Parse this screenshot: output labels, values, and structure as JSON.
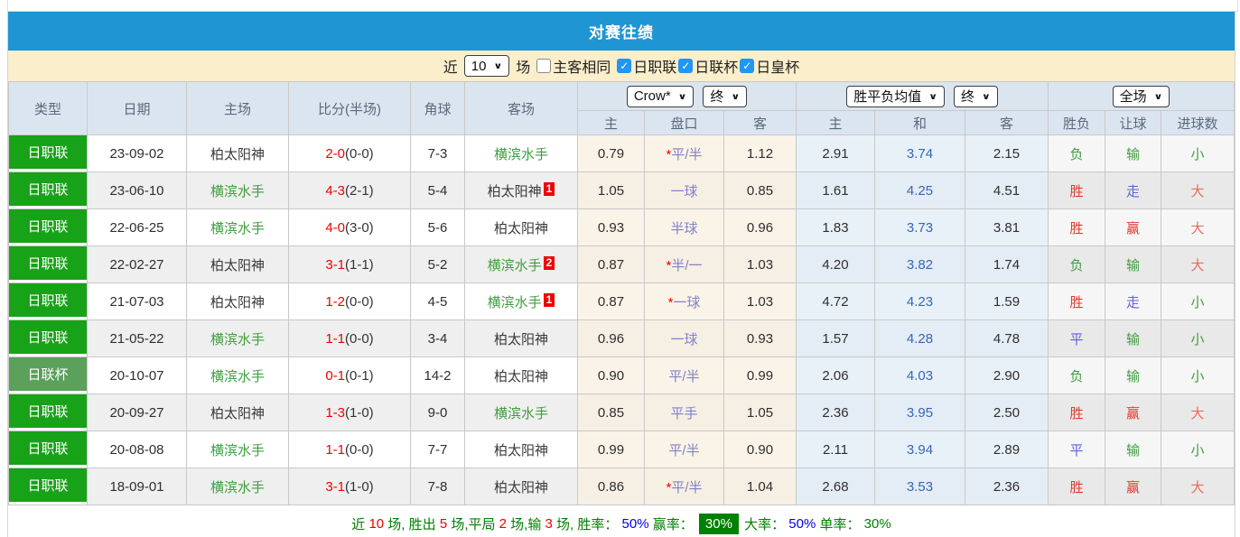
{
  "title": "对赛往绩",
  "colors": {
    "title_bar": "#2095d3",
    "filter_bar": "#fbeecb",
    "league_badge": "#18a218",
    "cup_badge": "#5ba05b",
    "summary_highlight": "#008000",
    "checkbox_checked": "#2196f3"
  },
  "filter": {
    "recent_label": "近",
    "match_count": "10",
    "games_label": "场",
    "same_home_away": "主客相同",
    "same_home_away_checked": false,
    "competitions": [
      {
        "label": "日职联",
        "checked": true
      },
      {
        "label": "日联杯",
        "checked": true
      },
      {
        "label": "日皇杯",
        "checked": true
      }
    ]
  },
  "table": {
    "main_headers": [
      "类型",
      "日期",
      "主场",
      "比分(半场)",
      "角球",
      "客场"
    ],
    "selects": {
      "odds_source": "Crow*",
      "odds_time": "终",
      "avg_source": "胜平负均值",
      "avg_time": "终",
      "scope": "全场"
    },
    "odds_sub_headers": [
      "主",
      "盘口",
      "客"
    ],
    "avg_sub_headers": [
      "主",
      "和",
      "客"
    ],
    "result_sub_headers": [
      "胜负",
      "让球",
      "进球数"
    ],
    "rows": [
      {
        "league": "日职联",
        "league_type": "jleague",
        "date": "23-09-02",
        "home": "柏太阳神",
        "home_color": "dark",
        "score": "2-0",
        "half": "(0-0)",
        "corner": "7-3",
        "away": "横滨水手",
        "away_color": "green",
        "away_num": "",
        "odds_home": "0.79",
        "handicap": "*平/半",
        "odds_away": "1.12",
        "avg_home": "2.91",
        "avg_draw": "3.74",
        "avg_away": "2.15",
        "result": "负",
        "result_color": "green",
        "let_result": "输",
        "let_color": "green",
        "goals": "小",
        "goals_color": "green"
      },
      {
        "league": "日职联",
        "league_type": "jleague",
        "date": "23-06-10",
        "home": "横滨水手",
        "home_color": "green",
        "score": "4-3",
        "half": "(2-1)",
        "corner": "5-4",
        "away": "柏太阳神",
        "away_color": "dark",
        "away_num": "1",
        "odds_home": "1.05",
        "handicap": "一球",
        "odds_away": "0.85",
        "avg_home": "1.61",
        "avg_draw": "4.25",
        "avg_away": "4.51",
        "result": "胜",
        "result_color": "red",
        "let_result": "走",
        "let_color": "blue",
        "goals": "大",
        "goals_color": "red"
      },
      {
        "league": "日职联",
        "league_type": "jleague",
        "date": "22-06-25",
        "home": "横滨水手",
        "home_color": "green",
        "score": "4-0",
        "half": "(3-0)",
        "corner": "5-6",
        "away": "柏太阳神",
        "away_color": "dark",
        "away_num": "",
        "odds_home": "0.93",
        "handicap": "半球",
        "odds_away": "0.96",
        "avg_home": "1.83",
        "avg_draw": "3.73",
        "avg_away": "3.81",
        "result": "胜",
        "result_color": "red",
        "let_result": "赢",
        "let_color": "red",
        "goals": "大",
        "goals_color": "red"
      },
      {
        "league": "日职联",
        "league_type": "jleague",
        "date": "22-02-27",
        "home": "柏太阳神",
        "home_color": "dark",
        "score": "3-1",
        "half": "(1-1)",
        "corner": "5-2",
        "away": "横滨水手",
        "away_color": "green",
        "away_num": "2",
        "odds_home": "0.87",
        "handicap": "*半/一",
        "odds_away": "1.03",
        "avg_home": "4.20",
        "avg_draw": "3.82",
        "avg_away": "1.74",
        "result": "负",
        "result_color": "green",
        "let_result": "输",
        "let_color": "green",
        "goals": "大",
        "goals_color": "red"
      },
      {
        "league": "日职联",
        "league_type": "jleague",
        "date": "21-07-03",
        "home": "柏太阳神",
        "home_color": "dark",
        "score": "1-2",
        "half": "(0-0)",
        "corner": "4-5",
        "away": "横滨水手",
        "away_color": "green",
        "away_num": "1",
        "odds_home": "0.87",
        "handicap": "*一球",
        "odds_away": "1.03",
        "avg_home": "4.72",
        "avg_draw": "4.23",
        "avg_away": "1.59",
        "result": "胜",
        "result_color": "red",
        "let_result": "走",
        "let_color": "blue",
        "goals": "小",
        "goals_color": "green"
      },
      {
        "league": "日职联",
        "league_type": "jleague",
        "date": "21-05-22",
        "home": "横滨水手",
        "home_color": "green",
        "score": "1-1",
        "half": "(0-0)",
        "corner": "3-4",
        "away": "柏太阳神",
        "away_color": "dark",
        "away_num": "",
        "odds_home": "0.96",
        "handicap": "一球",
        "odds_away": "0.93",
        "avg_home": "1.57",
        "avg_draw": "4.28",
        "avg_away": "4.78",
        "result": "平",
        "result_color": "blue",
        "let_result": "输",
        "let_color": "green",
        "goals": "小",
        "goals_color": "green"
      },
      {
        "league": "日联杯",
        "league_type": "cup",
        "date": "20-10-07",
        "home": "横滨水手",
        "home_color": "green",
        "score": "0-1",
        "half": "(0-1)",
        "corner": "14-2",
        "away": "柏太阳神",
        "away_color": "dark",
        "away_num": "",
        "odds_home": "0.90",
        "handicap": "平/半",
        "odds_away": "0.99",
        "avg_home": "2.06",
        "avg_draw": "4.03",
        "avg_away": "2.90",
        "result": "负",
        "result_color": "green",
        "let_result": "输",
        "let_color": "green",
        "goals": "小",
        "goals_color": "green"
      },
      {
        "league": "日职联",
        "league_type": "jleague",
        "date": "20-09-27",
        "home": "柏太阳神",
        "home_color": "dark",
        "score": "1-3",
        "half": "(1-0)",
        "corner": "9-0",
        "away": "横滨水手",
        "away_color": "green",
        "away_num": "",
        "odds_home": "0.85",
        "handicap": "平手",
        "odds_away": "1.05",
        "avg_home": "2.36",
        "avg_draw": "3.95",
        "avg_away": "2.50",
        "result": "胜",
        "result_color": "red",
        "let_result": "赢",
        "let_color": "red",
        "goals": "大",
        "goals_color": "red"
      },
      {
        "league": "日职联",
        "league_type": "jleague",
        "date": "20-08-08",
        "home": "横滨水手",
        "home_color": "green",
        "score": "1-1",
        "half": "(0-0)",
        "corner": "7-7",
        "away": "柏太阳神",
        "away_color": "dark",
        "away_num": "",
        "odds_home": "0.99",
        "handicap": "平/半",
        "odds_away": "0.90",
        "avg_home": "2.11",
        "avg_draw": "3.94",
        "avg_away": "2.89",
        "result": "平",
        "result_color": "blue",
        "let_result": "输",
        "let_color": "green",
        "goals": "小",
        "goals_color": "green"
      },
      {
        "league": "日职联",
        "league_type": "jleague",
        "date": "18-09-01",
        "home": "横滨水手",
        "home_color": "green",
        "score": "3-1",
        "half": "(1-0)",
        "corner": "7-8",
        "away": "柏太阳神",
        "away_color": "dark",
        "away_num": "",
        "odds_home": "0.86",
        "handicap": "*平/半",
        "odds_away": "1.04",
        "avg_home": "2.68",
        "avg_draw": "3.53",
        "avg_away": "2.36",
        "result": "胜",
        "result_color": "red",
        "let_result": "赢",
        "let_color": "red",
        "goals": "大",
        "goals_color": "red"
      }
    ]
  },
  "summary": {
    "segments": [
      {
        "text": "近 ",
        "color": "green"
      },
      {
        "text": "10",
        "color": "red"
      },
      {
        "text": " 场, 胜出 ",
        "color": "green"
      },
      {
        "text": "5",
        "color": "red"
      },
      {
        "text": " 场,平局 ",
        "color": "green"
      },
      {
        "text": "2",
        "color": "red"
      },
      {
        "text": " 场,输 ",
        "color": "green"
      },
      {
        "text": "3",
        "color": "red"
      },
      {
        "text": " 场, 胜率： ",
        "color": "green"
      },
      {
        "text": "50%",
        "color": "blue"
      },
      {
        "text": " 赢率： ",
        "color": "green"
      },
      {
        "text": "30%",
        "color": "highlight"
      },
      {
        "text": " 大率： ",
        "color": "green"
      },
      {
        "text": "50%",
        "color": "blue"
      },
      {
        "text": " 单率： ",
        "color": "green"
      },
      {
        "text": "30%",
        "color": "green"
      }
    ]
  }
}
